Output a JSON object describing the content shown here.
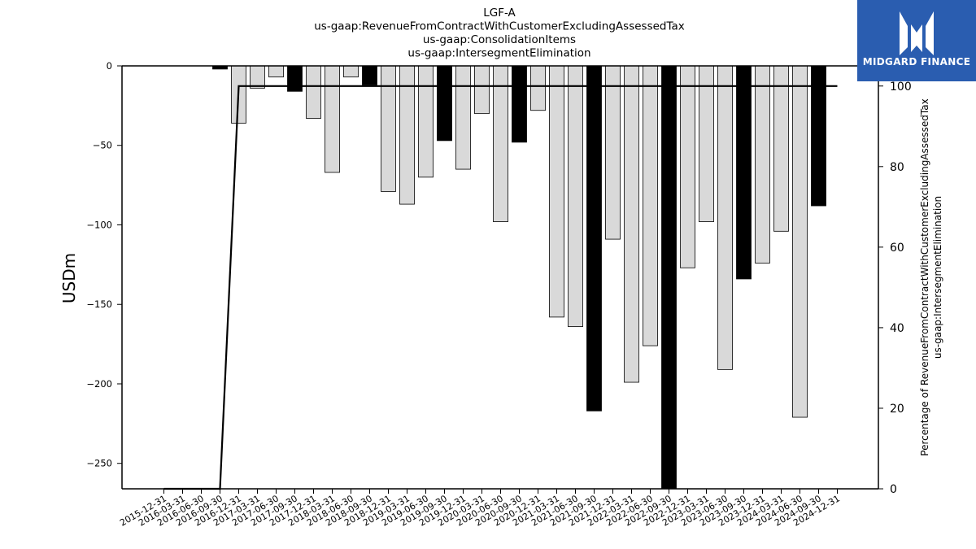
{
  "chart_data": {
    "type": "bar",
    "title_lines": [
      "LGF-A",
      "us-gaap:RevenueFromContractWithCustomerExcludingAssessedTax",
      "us-gaap:ConsolidationItems",
      "us-gaap:IntersegmentElimination"
    ],
    "ylabel": "USDm",
    "y2label_lines": [
      "Percentage of RevenueFromContractWithCustomerExcludingAssessedTax",
      "us-gaap:IntersegmentElimination"
    ],
    "ylim": [
      -266,
      0
    ],
    "yticks": [
      0,
      -50,
      -100,
      -150,
      -200,
      -250
    ],
    "y2lim": [
      0,
      105
    ],
    "y2ticks": [
      0,
      20,
      40,
      60,
      80,
      100
    ],
    "categories": [
      "2015-12-31",
      "2016-03-31",
      "2016-06-30",
      "2016-09-30",
      "2016-12-31",
      "2017-03-31",
      "2017-06-30",
      "2017-09-30",
      "2017-12-31",
      "2018-03-31",
      "2018-06-30",
      "2018-09-30",
      "2018-12-31",
      "2019-03-31",
      "2019-06-30",
      "2019-09-30",
      "2019-12-31",
      "2020-03-31",
      "2020-06-30",
      "2020-09-30",
      "2020-12-31",
      "2021-03-31",
      "2021-06-30",
      "2021-09-30",
      "2021-12-31",
      "2022-03-31",
      "2022-06-30",
      "2022-09-30",
      "2022-12-31",
      "2023-03-31",
      "2023-06-30",
      "2023-09-30",
      "2023-12-31",
      "2024-03-31",
      "2024-06-30",
      "2024-09-30",
      "2024-12-31"
    ],
    "values": [
      null,
      null,
      null,
      -2,
      -36,
      -14,
      -7,
      -16,
      -33,
      -67,
      -7,
      -12,
      -79,
      -87,
      -70,
      -47,
      -65,
      -30,
      -98,
      -48,
      -28,
      -158,
      -164,
      -217,
      -109,
      -199,
      -176,
      -266,
      -127,
      -98,
      -191,
      -134,
      -124,
      -104,
      -221,
      -88,
      null
    ],
    "bar_colors": [
      "#d9d9d9",
      "#d9d9d9",
      "#d9d9d9",
      "#000000",
      "#d9d9d9",
      "#d9d9d9",
      "#d9d9d9",
      "#000000",
      "#d9d9d9",
      "#d9d9d9",
      "#d9d9d9",
      "#000000",
      "#d9d9d9",
      "#d9d9d9",
      "#d9d9d9",
      "#000000",
      "#d9d9d9",
      "#d9d9d9",
      "#d9d9d9",
      "#000000",
      "#d9d9d9",
      "#d9d9d9",
      "#d9d9d9",
      "#000000",
      "#d9d9d9",
      "#d9d9d9",
      "#d9d9d9",
      "#000000",
      "#d9d9d9",
      "#d9d9d9",
      "#d9d9d9",
      "#000000",
      "#d9d9d9",
      "#d9d9d9",
      "#d9d9d9",
      "#000000",
      "#d9d9d9"
    ],
    "line_values": [
      0,
      0,
      0,
      0,
      100,
      100,
      100,
      100,
      100,
      100,
      100,
      100,
      100,
      100,
      100,
      100,
      100,
      100,
      100,
      100,
      100,
      100,
      100,
      100,
      100,
      100,
      100,
      100,
      100,
      100,
      100,
      100,
      100,
      100,
      100,
      100,
      100
    ],
    "grid": false
  },
  "logo": {
    "text": "MIDGARD FINANCE",
    "bg_color": "#2a5db0"
  }
}
